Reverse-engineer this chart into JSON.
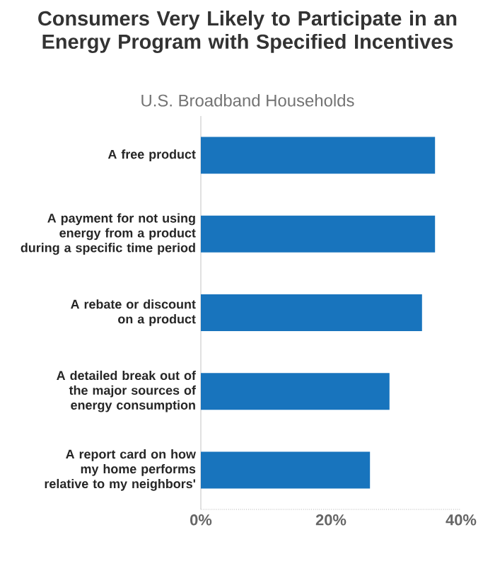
{
  "chart_data": {
    "type": "bar",
    "orientation": "horizontal",
    "title": "Consumers Very Likely to Participate in an Energy Program with Specified Incentives",
    "subtitle": "U.S. Broadband Households",
    "categories": [
      "A free product",
      "A payment for not using energy from a product during a specific time period",
      "A rebate or discount on a product",
      "A detailed break out of the major sources of energy consumption",
      "A report card on how my home performs relative to my neighbors'"
    ],
    "values": [
      36,
      36,
      34,
      29,
      26
    ],
    "color": "#1874bd",
    "xlim": [
      0,
      40
    ],
    "xticks": [
      {
        "value": 0,
        "label": "0%"
      },
      {
        "value": 20,
        "label": "20%"
      },
      {
        "value": 40,
        "label": "40%"
      }
    ],
    "grid": false
  }
}
